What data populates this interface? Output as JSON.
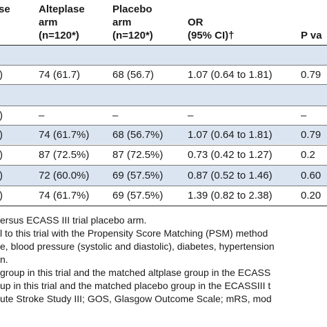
{
  "table": {
    "headers": {
      "col0": "se",
      "alteplase": [
        "Alteplase",
        "arm",
        "(n=120*)"
      ],
      "placebo": [
        "Placebo",
        "arm",
        "(n=120*)"
      ],
      "or": [
        "OR",
        "(95% CI)†"
      ],
      "pval": "P va"
    },
    "rows": [
      {
        "label": ")",
        "alteplase": "74 (61.7)",
        "placebo": "68 (56.7)",
        "or": "1.07 (0.64 to 1.81)",
        "p": "0.79"
      },
      {
        "label": ")",
        "alteplase": "–",
        "placebo": "–",
        "or": "–",
        "p": "–"
      },
      {
        "label": ")",
        "alteplase": "74 (61.7%)",
        "placebo": "68 (56.7%)",
        "or": "1.07 (0.64 to 1.81)",
        "p": "0.79"
      },
      {
        "label": ")",
        "alteplase": "87 (72.5%)",
        "placebo": "87 (72.5%)",
        "or": "0.73 (0.42 to 1.27)",
        "p": "0.2"
      },
      {
        "label": ")",
        "alteplase": "72 (60.0%)",
        "placebo": "69 (57.5%)",
        "or": "0.87 (0.52 to 1.46)",
        "p": "0.60"
      },
      {
        "label": ")",
        "alteplase": "74 (61.7%)",
        "placebo": "69 (57.5%)",
        "or": "1.39 (0.82 to 2.38)",
        "p": "0.20"
      }
    ]
  },
  "footnotes": [
    "ersus ECASS III trial placebo arm.",
    "l to this trial with the Propensity Score Matching (PSM) method",
    "e, blood pressure (systolic and diastolic), diabetes, hypertension",
    "n.",
    "group in this trial and the matched altplase group in the ECASS",
    "up in this trial and the matched placebo group in the ECASSIII t",
    "ute Stroke Study III; GOS, Glasgow Outcome Scale; mRS, mod"
  ],
  "colors": {
    "blue_band": "#dbe5f1",
    "text": "#1a1a1a",
    "rule": "#7a7a7a"
  }
}
